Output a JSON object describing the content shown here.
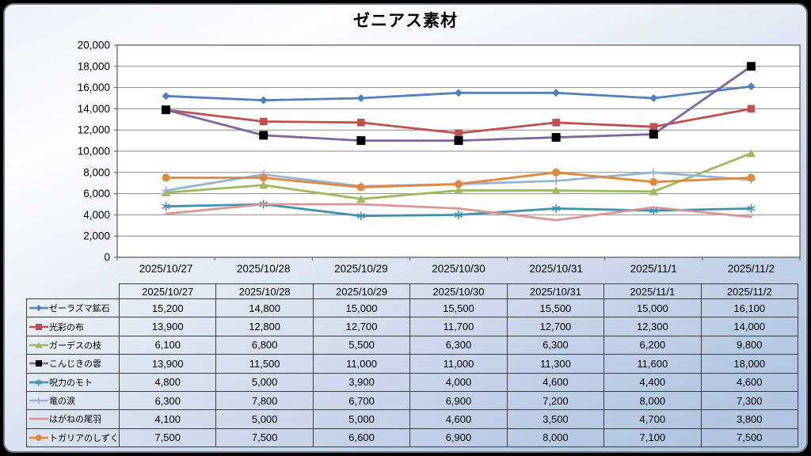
{
  "chart_data": {
    "type": "line",
    "title": "ゼニアス素材",
    "categories": [
      "2025/10/27",
      "2025/10/28",
      "2025/10/29",
      "2025/10/30",
      "2025/10/31",
      "2025/11/1",
      "2025/11/2"
    ],
    "ylim": [
      0,
      20000
    ],
    "ytick_step": 2000,
    "ytick_labels": [
      "0",
      "2,000",
      "4,000",
      "6,000",
      "8,000",
      "10,000",
      "12,000",
      "14,000",
      "16,000",
      "18,000",
      "20,000"
    ],
    "grid": true,
    "legend_position": "table-left",
    "plot_background": "#ffffff",
    "gridline_color": "#8a8a8a",
    "axis_color": "#565656",
    "series": [
      {
        "name": "ゼーラズマ鉱石",
        "color": "#4F81BD",
        "marker": "diamond",
        "values": [
          15200,
          14800,
          15000,
          15500,
          15500,
          15000,
          16100
        ]
      },
      {
        "name": "光彩の布",
        "color": "#C0504D",
        "marker": "square",
        "values": [
          13900,
          12800,
          12700,
          11700,
          12700,
          12300,
          14000
        ]
      },
      {
        "name": "ガーデスの枝",
        "color": "#9BBB59",
        "marker": "triangle",
        "values": [
          6100,
          6800,
          5500,
          6300,
          6300,
          6200,
          9800
        ]
      },
      {
        "name": "こんじきの雲",
        "color": "#8064A2",
        "marker": "square",
        "marker_color": "#000000",
        "marker_size": 5.5,
        "values": [
          13900,
          11500,
          11000,
          11000,
          11300,
          11600,
          18000
        ]
      },
      {
        "name": "呪力のモト",
        "color": "#3B92B4",
        "marker": "asterisk",
        "values": [
          4800,
          5000,
          3900,
          4000,
          4600,
          4400,
          4600
        ]
      },
      {
        "name": "竜の涙",
        "color": "#95B3D7",
        "marker": "plus",
        "values": [
          6300,
          7800,
          6700,
          6900,
          7200,
          8000,
          7300
        ]
      },
      {
        "name": "はがねの尾羽",
        "color": "#D99694",
        "marker": "none",
        "values": [
          4100,
          5000,
          5000,
          4600,
          3500,
          4700,
          3800
        ]
      },
      {
        "name": "トガリアのしずく",
        "color": "#E0883E",
        "marker": "circle",
        "values": [
          7500,
          7500,
          6600,
          6900,
          8000,
          7100,
          7500
        ]
      }
    ]
  }
}
